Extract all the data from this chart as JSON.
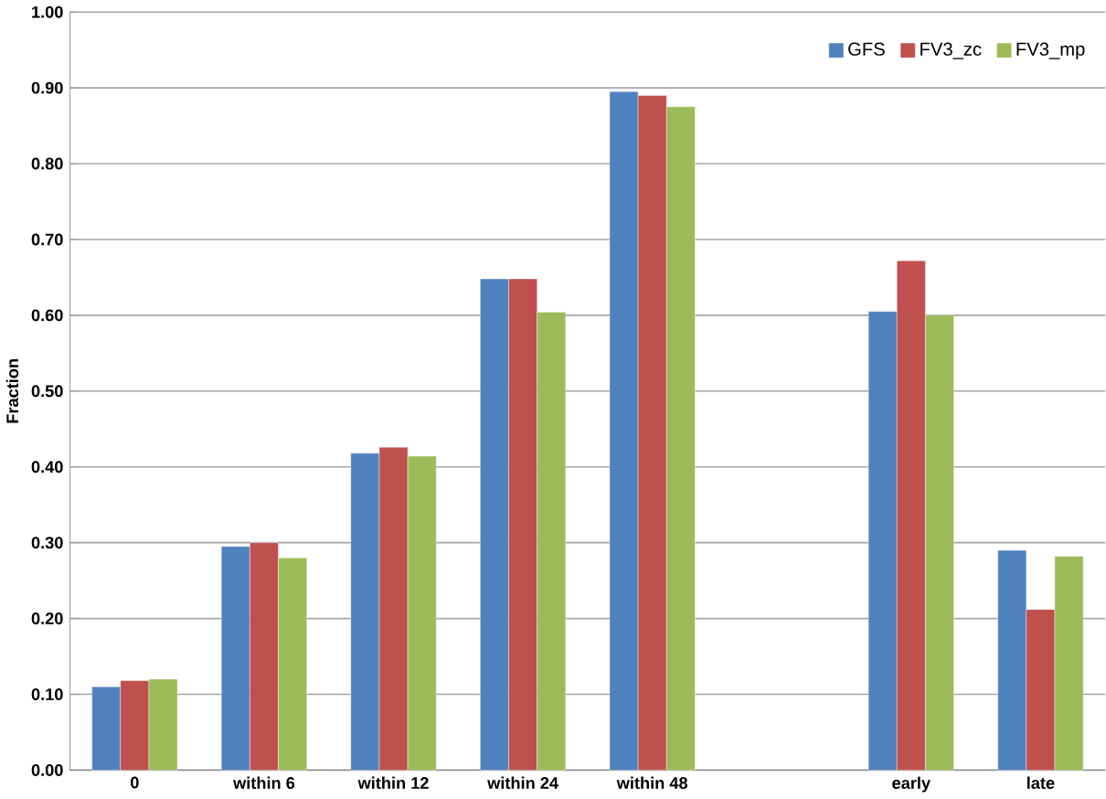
{
  "chart_data": {
    "type": "bar",
    "ylabel": "Fraction",
    "categories": [
      "0",
      "within 6",
      "within 12",
      "within 24",
      "within 48",
      null,
      "early",
      "late"
    ],
    "series": [
      {
        "name": "GFS",
        "color": "#4f81bd",
        "values": [
          0.11,
          0.295,
          0.418,
          0.648,
          0.895,
          null,
          0.605,
          0.29
        ]
      },
      {
        "name": "FV3_zc",
        "color": "#c0504d",
        "values": [
          0.118,
          0.3,
          0.426,
          0.648,
          0.89,
          null,
          0.672,
          0.212
        ]
      },
      {
        "name": "FV3_mp",
        "color": "#9bbb59",
        "values": [
          0.12,
          0.28,
          0.414,
          0.604,
          0.875,
          null,
          0.6,
          0.282
        ]
      }
    ],
    "ylim": [
      0,
      1
    ],
    "yticks": [
      {
        "value": 0,
        "label": "0.00"
      },
      {
        "value": 0.1,
        "label": "0.10"
      },
      {
        "value": 0.2,
        "label": "0.20"
      },
      {
        "value": 0.3,
        "label": "0.30"
      },
      {
        "value": 0.4,
        "label": "0.40"
      },
      {
        "value": 0.5,
        "label": "0.50"
      },
      {
        "value": 0.6,
        "label": "0.60"
      },
      {
        "value": 0.7,
        "label": "0.70"
      },
      {
        "value": 0.8,
        "label": "0.80"
      },
      {
        "value": 0.9,
        "label": "0.90"
      },
      {
        "value": 1,
        "label": "1.00"
      }
    ],
    "grid": "y",
    "legend": "top right"
  }
}
